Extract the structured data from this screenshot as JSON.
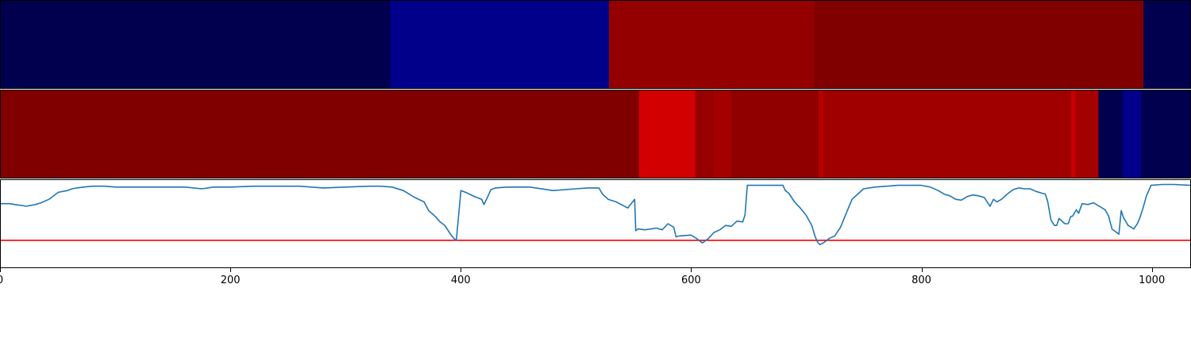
{
  "chart_data": [
    {
      "type": "heatmap",
      "name": "top-state-band",
      "colormap": "seismic",
      "x": [
        0,
        338,
        528,
        706,
        992,
        1034
      ],
      "segments": [
        {
          "x0": 0,
          "x1": 338,
          "color": "#00004f"
        },
        {
          "x0": 338,
          "x1": 528,
          "color": "#00008a"
        },
        {
          "x0": 528,
          "x1": 706,
          "color": "#940000"
        },
        {
          "x0": 706,
          "x1": 992,
          "color": "#800000"
        },
        {
          "x0": 992,
          "x1": 1034,
          "color": "#00004f"
        }
      ]
    },
    {
      "type": "heatmap",
      "name": "middle-state-band",
      "colormap": "seismic",
      "segments": [
        {
          "x0": 0,
          "x1": 554,
          "color": "#800000"
        },
        {
          "x0": 554,
          "x1": 603,
          "color": "#d20000"
        },
        {
          "x0": 603,
          "x1": 619,
          "color": "#960000"
        },
        {
          "x0": 619,
          "x1": 634,
          "color": "#a50000"
        },
        {
          "x0": 634,
          "x1": 710,
          "color": "#900000"
        },
        {
          "x0": 710,
          "x1": 714,
          "color": "#b80000"
        },
        {
          "x0": 714,
          "x1": 929,
          "color": "#a00000"
        },
        {
          "x0": 929,
          "x1": 933,
          "color": "#c40000"
        },
        {
          "x0": 933,
          "x1": 953,
          "color": "#a50000"
        },
        {
          "x0": 953,
          "x1": 974,
          "color": "#00004f"
        },
        {
          "x0": 974,
          "x1": 990,
          "color": "#00008a"
        },
        {
          "x0": 990,
          "x1": 1034,
          "color": "#00004f"
        }
      ]
    },
    {
      "type": "line",
      "name": "signal-line",
      "xlim": [
        0,
        1034
      ],
      "ylim": [
        0,
        1
      ],
      "line_color": "#1f77b4",
      "threshold": 0.31,
      "threshold_color": "#ff0000",
      "x": [
        0,
        8,
        12,
        18,
        22,
        30,
        35,
        42,
        50,
        58,
        62,
        66,
        72,
        80,
        90,
        100,
        120,
        140,
        160,
        175,
        185,
        200,
        220,
        240,
        260,
        280,
        300,
        320,
        330,
        340,
        350,
        360,
        368,
        372,
        378,
        382,
        386,
        390,
        392,
        394,
        396,
        400,
        404,
        412,
        418,
        420,
        423,
        426,
        430,
        440,
        460,
        480,
        500,
        510,
        520,
        523,
        528,
        535,
        545,
        551,
        552,
        554,
        560,
        570,
        575,
        580,
        585,
        587,
        590,
        600,
        605,
        610,
        612,
        615,
        620,
        625,
        630,
        635,
        640,
        645,
        647,
        649,
        655,
        665,
        680,
        682,
        685,
        690,
        695,
        700,
        705,
        708,
        710,
        712,
        715,
        720,
        725,
        730,
        735,
        740,
        745,
        750,
        760,
        770,
        780,
        790,
        800,
        808,
        815,
        820,
        825,
        830,
        835,
        840,
        845,
        850,
        855,
        858,
        860,
        863,
        866,
        870,
        875,
        880,
        885,
        890,
        895,
        900,
        905,
        908,
        910,
        913,
        916,
        918,
        920,
        925,
        928,
        930,
        932,
        935,
        937,
        940,
        945,
        950,
        955,
        960,
        963,
        966,
        970,
        972,
        974,
        976,
        980,
        985,
        988,
        990,
        993,
        996,
        1000,
        1010,
        1020,
        1034
      ],
      "y": [
        0.73,
        0.73,
        0.72,
        0.71,
        0.7,
        0.72,
        0.74,
        0.78,
        0.86,
        0.88,
        0.9,
        0.91,
        0.92,
        0.93,
        0.93,
        0.92,
        0.92,
        0.92,
        0.92,
        0.9,
        0.92,
        0.92,
        0.93,
        0.93,
        0.93,
        0.91,
        0.92,
        0.93,
        0.93,
        0.92,
        0.88,
        0.8,
        0.75,
        0.65,
        0.58,
        0.52,
        0.48,
        0.4,
        0.36,
        0.33,
        0.31,
        0.88,
        0.86,
        0.81,
        0.78,
        0.72,
        0.8,
        0.89,
        0.91,
        0.92,
        0.92,
        0.88,
        0.9,
        0.91,
        0.91,
        0.84,
        0.78,
        0.75,
        0.68,
        0.78,
        0.42,
        0.44,
        0.43,
        0.45,
        0.43,
        0.5,
        0.46,
        0.35,
        0.36,
        0.37,
        0.33,
        0.28,
        0.3,
        0.33,
        0.4,
        0.43,
        0.48,
        0.47,
        0.53,
        0.52,
        0.6,
        0.94,
        0.94,
        0.94,
        0.94,
        0.88,
        0.85,
        0.75,
        0.68,
        0.6,
        0.48,
        0.35,
        0.29,
        0.26,
        0.28,
        0.33,
        0.36,
        0.46,
        0.62,
        0.78,
        0.84,
        0.9,
        0.92,
        0.93,
        0.94,
        0.94,
        0.94,
        0.92,
        0.88,
        0.84,
        0.82,
        0.78,
        0.77,
        0.81,
        0.83,
        0.82,
        0.8,
        0.74,
        0.7,
        0.78,
        0.75,
        0.78,
        0.84,
        0.89,
        0.91,
        0.9,
        0.9,
        0.87,
        0.85,
        0.84,
        0.76,
        0.54,
        0.48,
        0.48,
        0.56,
        0.5,
        0.5,
        0.58,
        0.59,
        0.66,
        0.62,
        0.73,
        0.72,
        0.74,
        0.7,
        0.66,
        0.59,
        0.44,
        0.4,
        0.38,
        0.65,
        0.57,
        0.48,
        0.44,
        0.5,
        0.56,
        0.68,
        0.82,
        0.94,
        0.95,
        0.95,
        0.94
      ]
    }
  ],
  "x_axis": {
    "ticks": [
      0,
      200,
      400,
      600,
      800,
      1000
    ],
    "tick_labels": [
      "0",
      "200",
      "400",
      "600",
      "800",
      "1000"
    ],
    "xlim": [
      0,
      1034
    ]
  }
}
